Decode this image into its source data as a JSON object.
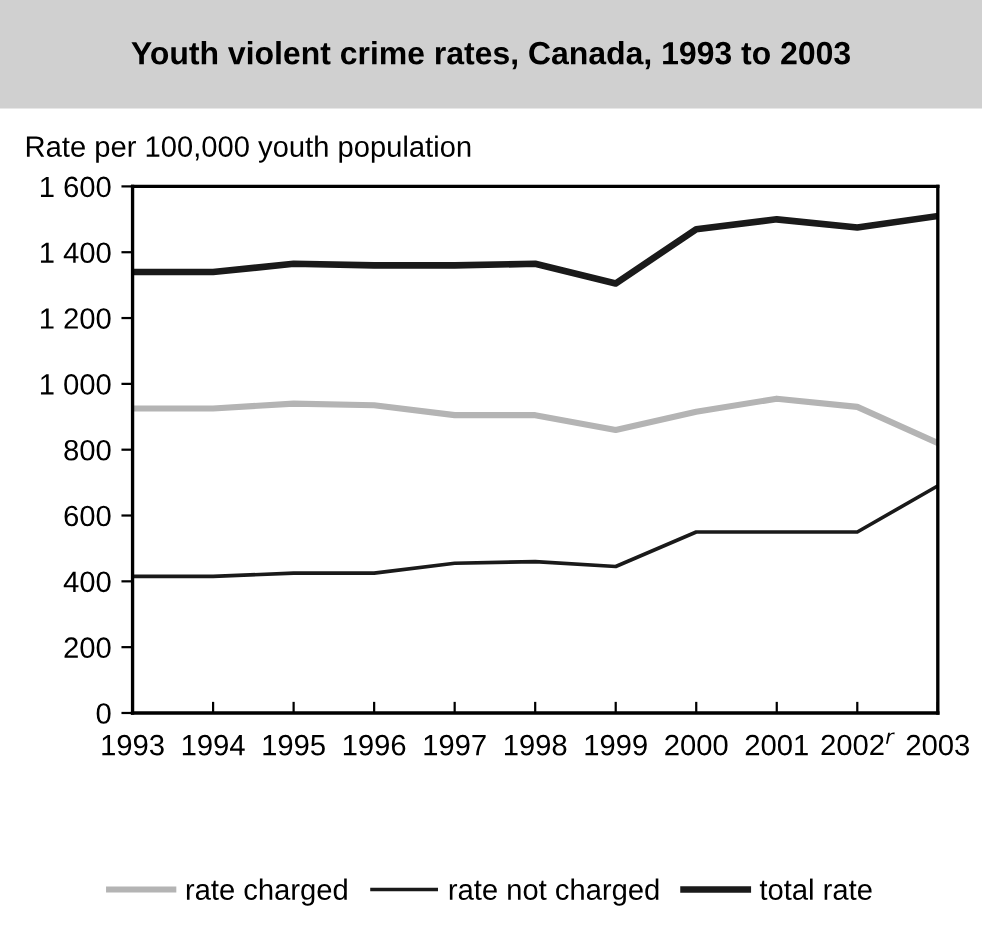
{
  "chart_data": {
    "type": "line",
    "title": "Youth violent crime rates, Canada, 1993 to 2003",
    "ylabel": "Rate per 100,000 youth population",
    "categories": [
      "1993",
      "1994",
      "1995",
      "1996",
      "1997",
      "1998",
      "1999",
      "2000",
      "2001",
      "2002$^{r}$",
      "2003"
    ],
    "series": [
      {
        "name": "rate charged",
        "color": "#b4b4b4",
        "values": [
          925,
          925,
          940,
          935,
          905,
          905,
          860,
          915,
          955,
          930,
          820
        ]
      },
      {
        "name": "rate not charged",
        "color": "#1a1a1a",
        "values": [
          415,
          415,
          425,
          425,
          455,
          460,
          445,
          550,
          550,
          550,
          690
        ]
      },
      {
        "name": "total rate",
        "color": "#1a1a1a",
        "values": [
          1340,
          1340,
          1365,
          1360,
          1360,
          1365,
          1305,
          1470,
          1500,
          1475,
          1510
        ]
      }
    ],
    "ylim": [
      0,
      1600
    ],
    "yticks": [
      0,
      200,
      400,
      600,
      800,
      {
        "value": 1000,
        "label": "1 000"
      },
      {
        "value": 1200,
        "label": "1 200"
      },
      {
        "value": 1400,
        "label": "1 400"
      },
      {
        "value": 1600,
        "label": "1 600"
      }
    ],
    "legend": "bottom",
    "grid": false,
    "marker": "none",
    "line_style": "solid"
  }
}
